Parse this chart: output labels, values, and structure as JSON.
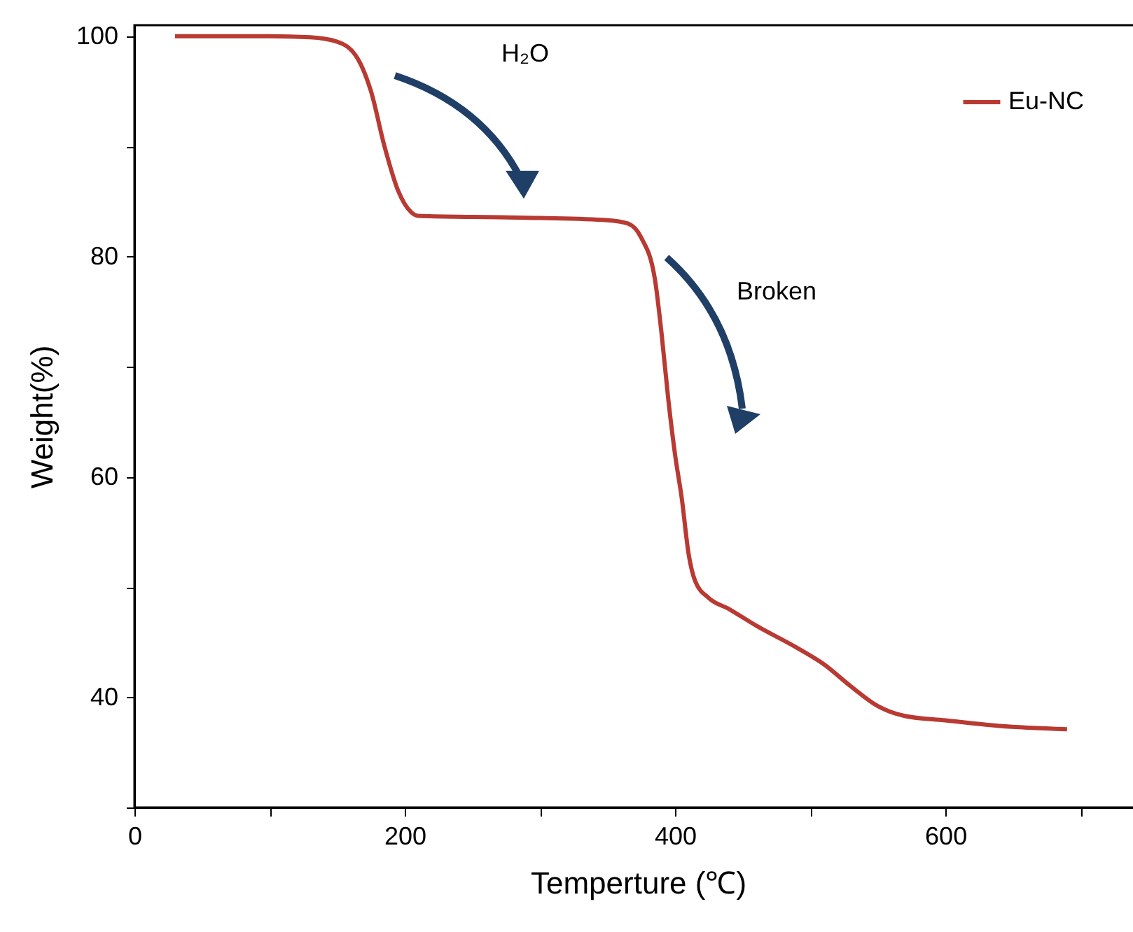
{
  "chart_data": {
    "type": "line",
    "xlabel": "Temperture (℃)",
    "ylabel": "Weight(%)",
    "xlim": [
      0,
      745
    ],
    "ylim": [
      30,
      101
    ],
    "xticks": [
      0,
      {
        "value": 100,
        "label": null
      },
      200,
      {
        "value": 300,
        "label": null
      },
      400,
      {
        "value": 500,
        "label": null
      },
      600,
      {
        "value": 700,
        "label": null
      }
    ],
    "yticks": [
      {
        "value": 30,
        "label": null
      },
      40,
      {
        "value": 50,
        "label": null
      },
      60,
      {
        "value": 70,
        "label": null
      },
      80,
      {
        "value": 90,
        "label": null
      },
      100
    ],
    "legend": "top right",
    "grid": false,
    "line_style": "solid",
    "annotations": [
      "H₂O",
      "Broken"
    ],
    "series": [
      {
        "name": "Eu-NC",
        "color": "#b83a32",
        "x": [
          30,
          100,
          130,
          150,
          165,
          175,
          185,
          195,
          205,
          210,
          250,
          300,
          350,
          365,
          375,
          385,
          390,
          395,
          400,
          405,
          410,
          415,
          425,
          440,
          460,
          490,
          510,
          530,
          550,
          570,
          600,
          640,
          690
        ],
        "values": [
          100,
          100,
          99.9,
          99.5,
          98,
          95,
          90,
          86,
          84,
          83.7,
          83.6,
          83.5,
          83.3,
          83,
          81.7,
          78,
          73,
          67,
          62,
          58,
          53,
          50.5,
          49,
          48,
          46.5,
          44.5,
          43,
          41,
          39.2,
          38.3,
          37.9,
          37.4,
          37.1
        ]
      }
    ]
  }
}
